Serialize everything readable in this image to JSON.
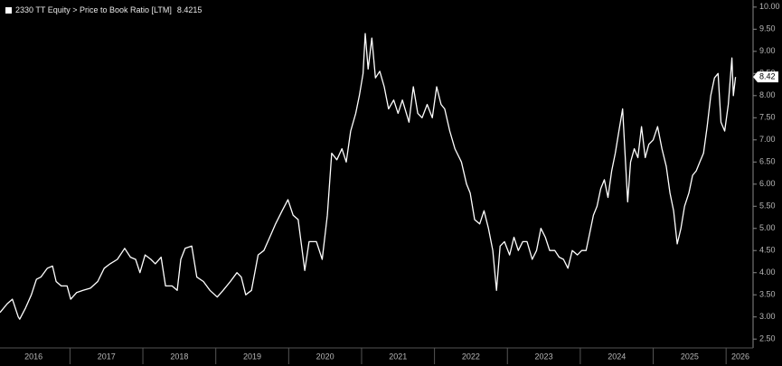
{
  "chart_data": {
    "type": "line",
    "title": "2330 TT Equity > Price to Book Ratio [LTM]",
    "last_price": {
      "value": 8.4215,
      "label": "8.42"
    },
    "xlim": [
      2016.04,
      2026.37
    ],
    "xticks": [
      {
        "value": 2016,
        "label": "2016"
      },
      {
        "value": 2017,
        "label": "2017"
      },
      {
        "value": 2018,
        "label": "2018"
      },
      {
        "value": 2019,
        "label": "2019"
      },
      {
        "value": 2020,
        "label": "2020"
      },
      {
        "value": 2021,
        "label": "2021"
      },
      {
        "value": 2022,
        "label": "2022"
      },
      {
        "value": 2023,
        "label": "2023"
      },
      {
        "value": 2024,
        "label": "2024"
      },
      {
        "value": 2025,
        "label": "2025"
      },
      {
        "value": 2026,
        "label": "2026"
      }
    ],
    "ylim": [
      2.3,
      10.16
    ],
    "yticks": [
      {
        "value": 2.5,
        "label": "2.50"
      },
      {
        "value": 3,
        "label": "3.00"
      },
      {
        "value": 3.5,
        "label": "3.50"
      },
      {
        "value": 4,
        "label": "4.00"
      },
      {
        "value": 4.5,
        "label": "4.50"
      },
      {
        "value": 5,
        "label": "5.00"
      },
      {
        "value": 5.5,
        "label": "5.50"
      },
      {
        "value": 6,
        "label": "6.00"
      },
      {
        "value": 6.5,
        "label": "6.50"
      },
      {
        "value": 7,
        "label": "7.00"
      },
      {
        "value": 7.5,
        "label": "7.50"
      },
      {
        "value": 8,
        "label": "8.00"
      },
      {
        "value": 8.5,
        "label": "8.50"
      },
      {
        "value": 9,
        "label": "9.00"
      },
      {
        "value": 9.5,
        "label": "9.50"
      },
      {
        "value": 10,
        "label": "10.00"
      }
    ],
    "grid": false,
    "series": [
      {
        "color": "#ffffff",
        "x": [
          2016.04,
          2016.14,
          2016.21,
          2016.29,
          2016.31,
          2016.39,
          2016.47,
          2016.54,
          2016.6,
          2016.69,
          2016.76,
          2016.81,
          2016.88,
          2016.96,
          2017.01,
          2017.09,
          2017.18,
          2017.28,
          2017.38,
          2017.47,
          2017.55,
          2017.65,
          2017.75,
          2017.83,
          2017.9,
          2017.96,
          2018.03,
          2018.11,
          2018.17,
          2018.25,
          2018.31,
          2018.4,
          2018.47,
          2018.52,
          2018.58,
          2018.67,
          2018.74,
          2018.83,
          2018.92,
          2019.02,
          2019.1,
          2019.2,
          2019.29,
          2019.35,
          2019.41,
          2019.49,
          2019.58,
          2019.66,
          2019.74,
          2019.82,
          2019.91,
          2019.99,
          2020.06,
          2020.13,
          2020.22,
          2020.28,
          2020.38,
          2020.46,
          2020.53,
          2020.59,
          2020.66,
          2020.73,
          2020.79,
          2020.85,
          2020.92,
          2020.97,
          2021.02,
          2021.05,
          2021.09,
          2021.14,
          2021.19,
          2021.25,
          2021.31,
          2021.37,
          2021.44,
          2021.5,
          2021.56,
          2021.65,
          2021.71,
          2021.77,
          2021.83,
          2021.9,
          2021.97,
          2022.03,
          2022.09,
          2022.14,
          2022.21,
          2022.28,
          2022.37,
          2022.44,
          2022.49,
          2022.55,
          2022.62,
          2022.68,
          2022.74,
          2022.8,
          2022.85,
          2022.9,
          2022.96,
          2023.03,
          2023.09,
          2023.15,
          2023.21,
          2023.27,
          2023.34,
          2023.4,
          2023.46,
          2023.52,
          2023.58,
          2023.65,
          2023.71,
          2023.77,
          2023.83,
          2023.89,
          2023.96,
          2024.02,
          2024.08,
          2024.13,
          2024.18,
          2024.23,
          2024.28,
          2024.33,
          2024.38,
          2024.43,
          2024.48,
          2024.53,
          2024.58,
          2024.61,
          2024.65,
          2024.69,
          2024.74,
          2024.79,
          2024.84,
          2024.89,
          2024.94,
          2025.0,
          2025.06,
          2025.12,
          2025.18,
          2025.23,
          2025.28,
          2025.33,
          2025.38,
          2025.43,
          2025.49,
          2025.54,
          2025.59,
          2025.64,
          2025.69,
          2025.74,
          2025.79,
          2025.84,
          2025.89,
          2025.93,
          2025.98,
          2026.03,
          2026.08,
          2026.1,
          2026.13
        ],
        "values": [
          3.1,
          3.3,
          3.4,
          3.0,
          2.95,
          3.2,
          3.5,
          3.85,
          3.9,
          4.1,
          4.15,
          3.8,
          3.7,
          3.7,
          3.4,
          3.55,
          3.6,
          3.65,
          3.8,
          4.1,
          4.2,
          4.3,
          4.55,
          4.35,
          4.3,
          4.0,
          4.4,
          4.3,
          4.2,
          4.35,
          3.7,
          3.7,
          3.6,
          4.3,
          4.55,
          4.6,
          3.9,
          3.8,
          3.6,
          3.45,
          3.6,
          3.8,
          4.0,
          3.9,
          3.5,
          3.6,
          4.4,
          4.5,
          4.8,
          5.1,
          5.4,
          5.65,
          5.3,
          5.2,
          4.05,
          4.7,
          4.7,
          4.3,
          5.3,
          6.7,
          6.55,
          6.8,
          6.5,
          7.2,
          7.6,
          8.0,
          8.5,
          9.4,
          8.6,
          9.3,
          8.4,
          8.55,
          8.2,
          7.7,
          7.9,
          7.6,
          7.9,
          7.4,
          8.2,
          7.6,
          7.5,
          7.8,
          7.5,
          8.2,
          7.8,
          7.7,
          7.2,
          6.8,
          6.5,
          6.0,
          5.8,
          5.2,
          5.1,
          5.4,
          5.0,
          4.5,
          3.6,
          4.6,
          4.7,
          4.4,
          4.8,
          4.5,
          4.7,
          4.7,
          4.3,
          4.5,
          5.0,
          4.8,
          4.5,
          4.5,
          4.35,
          4.3,
          4.1,
          4.5,
          4.4,
          4.5,
          4.5,
          4.9,
          5.3,
          5.5,
          5.9,
          6.1,
          5.7,
          6.3,
          6.7,
          7.2,
          7.7,
          6.8,
          5.6,
          6.5,
          6.8,
          6.6,
          7.3,
          6.6,
          6.9,
          7.0,
          7.3,
          6.8,
          6.4,
          5.8,
          5.4,
          4.65,
          5.0,
          5.5,
          5.8,
          6.2,
          6.3,
          6.5,
          6.7,
          7.3,
          8.0,
          8.4,
          8.5,
          7.4,
          7.2,
          7.8,
          8.85,
          8.0,
          8.42
        ]
      }
    ]
  }
}
